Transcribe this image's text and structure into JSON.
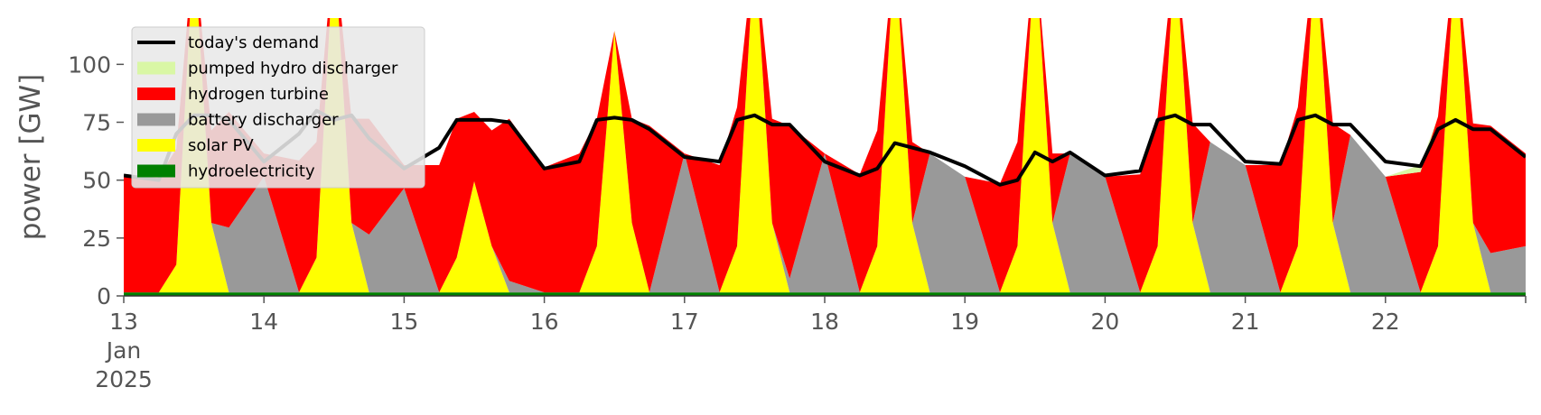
{
  "chart_data": {
    "type": "area",
    "title": "",
    "xlabel": "",
    "ylabel": "power [GW]",
    "xlim": [
      "2025-01-13 00:00",
      "2025-01-23 00:00"
    ],
    "ylim": [
      0,
      120
    ],
    "x_tick_labels": [
      "13\nJan\n2025",
      "14",
      "15",
      "16",
      "17",
      "18",
      "19",
      "20",
      "21",
      "22"
    ],
    "y_ticks": [
      0,
      25,
      50,
      75,
      100
    ],
    "y_tick_labels": [
      "0",
      "25",
      "50",
      "75",
      "100"
    ],
    "grid": false,
    "legend_position": "upper left",
    "x": [
      "2025-01-13 00:00",
      "2025-01-13 06:00",
      "2025-01-13 09:00",
      "2025-01-13 12:00",
      "2025-01-13 15:00",
      "2025-01-13 18:00",
      "2025-01-14 00:00",
      "2025-01-14 06:00",
      "2025-01-14 09:00",
      "2025-01-14 12:00",
      "2025-01-14 15:00",
      "2025-01-14 18:00",
      "2025-01-15 00:00",
      "2025-01-15 06:00",
      "2025-01-15 09:00",
      "2025-01-15 12:00",
      "2025-01-15 15:00",
      "2025-01-15 18:00",
      "2025-01-16 00:00",
      "2025-01-16 06:00",
      "2025-01-16 09:00",
      "2025-01-16 12:00",
      "2025-01-16 15:00",
      "2025-01-16 18:00",
      "2025-01-17 00:00",
      "2025-01-17 06:00",
      "2025-01-17 09:00",
      "2025-01-17 12:00",
      "2025-01-17 15:00",
      "2025-01-17 18:00",
      "2025-01-18 00:00",
      "2025-01-18 06:00",
      "2025-01-18 09:00",
      "2025-01-18 12:00",
      "2025-01-18 15:00",
      "2025-01-18 18:00",
      "2025-01-19 00:00",
      "2025-01-19 06:00",
      "2025-01-19 09:00",
      "2025-01-19 12:00",
      "2025-01-19 15:00",
      "2025-01-19 18:00",
      "2025-01-20 00:00",
      "2025-01-20 06:00",
      "2025-01-20 09:00",
      "2025-01-20 12:00",
      "2025-01-20 15:00",
      "2025-01-20 18:00",
      "2025-01-21 00:00",
      "2025-01-21 06:00",
      "2025-01-21 09:00",
      "2025-01-21 12:00",
      "2025-01-21 15:00",
      "2025-01-21 18:00",
      "2025-01-22 00:00",
      "2025-01-22 06:00",
      "2025-01-22 09:00",
      "2025-01-22 12:00",
      "2025-01-22 15:00",
      "2025-01-22 18:00",
      "2025-01-23 00:00"
    ],
    "series": [
      {
        "name": "hydroelectricity",
        "color": "#008000",
        "values": [
          1.5,
          1.5,
          1.5,
          1.5,
          1.5,
          1.5,
          1.5,
          1.5,
          1.5,
          1.5,
          1.5,
          1.5,
          1.5,
          1.5,
          1.5,
          1.5,
          1.5,
          1.5,
          1.5,
          1.5,
          1.5,
          1.5,
          1.5,
          1.5,
          1.5,
          1.5,
          1.5,
          1.5,
          1.5,
          1.5,
          1.5,
          1.5,
          1.5,
          1.5,
          1.5,
          1.5,
          1.5,
          1.5,
          1.5,
          1.5,
          1.5,
          1.5,
          1.5,
          1.5,
          1.5,
          1.5,
          1.5,
          1.5,
          1.5,
          1.5,
          1.5,
          1.5,
          1.5,
          1.5,
          1.5,
          1.5,
          1.5,
          1.5,
          1.5,
          1.5,
          1.5
        ]
      },
      {
        "name": "solar PV",
        "color": "#ffff00",
        "values": [
          0,
          0,
          12,
          150,
          30,
          0,
          0,
          0,
          15,
          150,
          30,
          0,
          0,
          0,
          15,
          48,
          20,
          0,
          0,
          0,
          20,
          113,
          30,
          0,
          0,
          0,
          20,
          150,
          30,
          0,
          0,
          0,
          20,
          150,
          30,
          0,
          0,
          0,
          20,
          150,
          30,
          0,
          0,
          0,
          20,
          150,
          30,
          0,
          0,
          0,
          20,
          150,
          30,
          0,
          0,
          0,
          20,
          150,
          30,
          0,
          0
        ]
      },
      {
        "name": "battery discharger",
        "color": "#999999",
        "values": [
          0,
          0,
          0,
          0,
          0,
          28,
          50,
          0,
          0,
          0,
          0,
          25,
          45,
          0,
          0,
          0,
          0,
          5,
          0,
          0,
          0,
          0,
          0,
          0,
          60,
          0,
          0,
          0,
          0,
          6,
          60,
          0,
          0,
          0,
          0,
          60,
          50,
          0,
          0,
          0,
          0,
          60,
          50,
          0,
          0,
          0,
          0,
          65,
          55,
          0,
          0,
          0,
          0,
          68,
          50,
          0,
          0,
          0,
          0,
          17,
          20
        ]
      },
      {
        "name": "hydrogen turbine",
        "color": "#ff0000",
        "values": [
          50,
          50,
          50,
          0,
          40,
          50,
          10,
          57,
          50,
          0,
          45,
          50,
          10,
          55,
          60,
          30,
          50,
          70,
          54,
          60,
          55,
          0,
          45,
          72,
          0,
          55,
          60,
          0,
          45,
          66,
          0,
          51,
          50,
          0,
          35,
          0,
          0,
          47,
          45,
          0,
          30,
          0,
          0,
          51,
          56,
          0,
          43,
          0,
          0,
          55,
          60,
          0,
          43,
          0,
          0,
          52,
          56,
          0,
          43,
          55,
          40
        ]
      },
      {
        "name": "pumped hydro discharger",
        "color": "#d9f7a5",
        "values": [
          0,
          0,
          0,
          0,
          0,
          0,
          0,
          0,
          0,
          0,
          0,
          0,
          0,
          0,
          0,
          0,
          0,
          0,
          0,
          0,
          0,
          0,
          0,
          0,
          0,
          0,
          0,
          0,
          0,
          0,
          0,
          0,
          0,
          0,
          0,
          0,
          0,
          0,
          0,
          0,
          0,
          0,
          0,
          0,
          0,
          0,
          0,
          0,
          0,
          0,
          0,
          0,
          0,
          0,
          0,
          3,
          0,
          0,
          0,
          0,
          0
        ]
      },
      {
        "name": "today's demand",
        "color": "#000000",
        "values": [
          52,
          50,
          70,
          78,
          78,
          76,
          58,
          70,
          80,
          76,
          78,
          68,
          55,
          64,
          76,
          76,
          76,
          75,
          55,
          58,
          76,
          77,
          76,
          72,
          60,
          58,
          76,
          78,
          74,
          74,
          58,
          52,
          55,
          66,
          64,
          62,
          56,
          48,
          50,
          62,
          58,
          62,
          52,
          54,
          76,
          78,
          74,
          74,
          58,
          57,
          76,
          78,
          74,
          74,
          58,
          56,
          72,
          76,
          72,
          72,
          60
        ]
      }
    ]
  },
  "legend": {
    "items": [
      {
        "label": "today's demand",
        "color": "#000000",
        "kind": "line"
      },
      {
        "label": "pumped hydro discharger",
        "color": "#d9f7a5",
        "kind": "patch"
      },
      {
        "label": "hydrogen turbine",
        "color": "#ff0000",
        "kind": "patch"
      },
      {
        "label": "battery discharger",
        "color": "#999999",
        "kind": "patch"
      },
      {
        "label": "solar PV",
        "color": "#ffff00",
        "kind": "patch"
      },
      {
        "label": "hydroelectricity",
        "color": "#008000",
        "kind": "patch"
      }
    ]
  }
}
